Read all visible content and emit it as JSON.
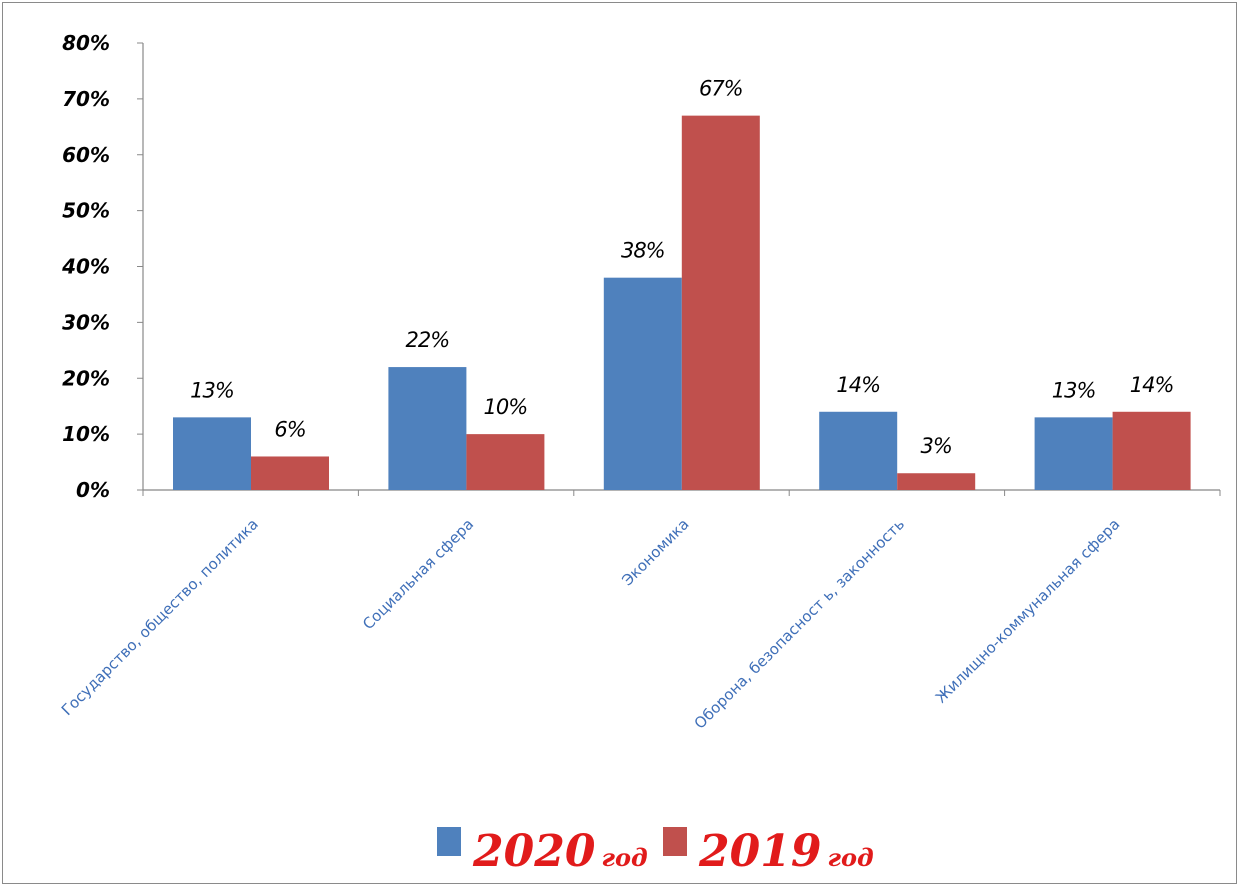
{
  "chart_data": {
    "type": "bar",
    "categories": [
      "Государство, общество, политика",
      "Социальная сфера",
      "Экономика",
      "Оборона, безопасност ь, законность",
      "Жилищно-коммунальная сфера"
    ],
    "series": [
      {
        "name": "2020",
        "values": [
          13,
          22,
          38,
          14,
          13
        ],
        "labels": [
          "13%",
          "22%",
          "38%",
          "14%",
          "13%"
        ],
        "color": "#4f81bd"
      },
      {
        "name": "2019",
        "values": [
          6,
          10,
          67,
          3,
          14
        ],
        "labels": [
          "6%",
          "10%",
          "67%",
          "3%",
          "14%"
        ],
        "color": "#c0504d"
      }
    ],
    "ylim": [
      0,
      80
    ],
    "yticks": [
      0,
      10,
      20,
      30,
      40,
      50,
      60,
      70,
      80
    ],
    "ytick_labels": [
      "0%",
      "10%",
      "20%",
      "30%",
      "40%",
      "50%",
      "60%",
      "70%",
      "80%"
    ],
    "grid": false,
    "legend": {
      "placement": "bottom",
      "items": [
        {
          "year": "2020",
          "suffix": "год",
          "color": "#4f81bd"
        },
        {
          "year": "2019",
          "suffix": "год",
          "color": "#c0504d"
        }
      ]
    }
  }
}
